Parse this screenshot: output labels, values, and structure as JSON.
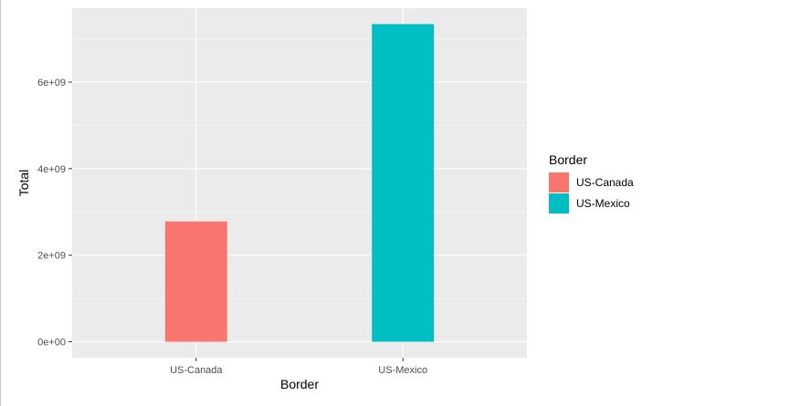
{
  "chart_data": {
    "type": "bar",
    "categories": [
      "US-Canada",
      "US-Mexico"
    ],
    "values": [
      2780000000,
      7340000000
    ],
    "colors": [
      "#F8766D",
      "#00BFC4"
    ],
    "xlabel": "Border",
    "ylabel": "Total",
    "ylim": [
      -367000000,
      7707000000
    ],
    "yticks": [
      0,
      2000000000,
      4000000000,
      6000000000
    ],
    "ytick_labels": [
      "0e+00",
      "2e+09",
      "4e+09",
      "6e+09"
    ],
    "grid": true,
    "panel_background": "#EBEBEB",
    "legend": {
      "title": "Border",
      "placement": "right",
      "entries": [
        {
          "label": "US-Canada",
          "color": "#F8766D"
        },
        {
          "label": "US-Mexico",
          "color": "#00BFC4"
        }
      ]
    }
  }
}
